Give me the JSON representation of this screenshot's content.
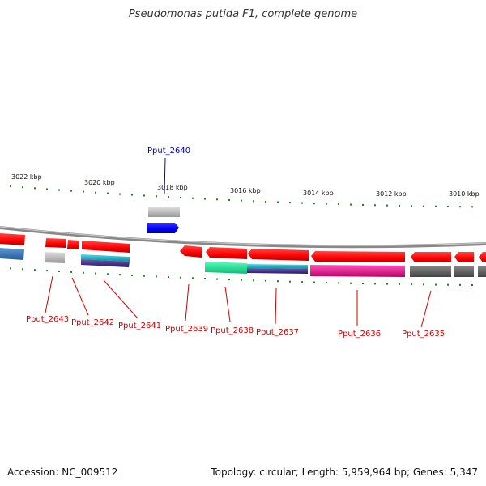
{
  "title": "Pseudomonas putida F1, complete genome",
  "accession": {
    "label": "Accession:",
    "value": "NC_009512"
  },
  "summary": {
    "topology_label": "Topology:",
    "topology": "circular",
    "length_label": "Length:",
    "length": "5,959,964 bp",
    "genes_label": "Genes:",
    "genes": "5,347"
  },
  "ruler": {
    "ticks": [
      "3022 kbp",
      "3020 kbp",
      "3018 kbp",
      "3016 kbp",
      "3014 kbp",
      "3012 kbp",
      "3010 kbp"
    ]
  },
  "genes": [
    {
      "id": "Pput_2643",
      "strand": "forward",
      "color": "#cc0000"
    },
    {
      "id": "Pput_2642",
      "strand": "forward",
      "color": "#cc0000"
    },
    {
      "id": "Pput_2641",
      "strand": "forward",
      "color": "#cc0000"
    },
    {
      "id": "Pput_2640",
      "strand": "reverse",
      "color": "#0000cc"
    },
    {
      "id": "Pput_2639",
      "strand": "forward",
      "color": "#cc0000"
    },
    {
      "id": "Pput_2638",
      "strand": "forward",
      "color": "#cc0000"
    },
    {
      "id": "Pput_2637",
      "strand": "forward",
      "color": "#cc0000"
    },
    {
      "id": "Pput_2636",
      "strand": "forward",
      "color": "#cc0000"
    },
    {
      "id": "Pput_2635",
      "strand": "forward",
      "color": "#cc0000"
    }
  ],
  "colors": {
    "forward_gene": "#ff0000",
    "reverse_gene": "#0000ff",
    "backbone": "#777777",
    "tick": "#118811",
    "cog_blue": "#3a78b8",
    "cog_grey": "#b8b8b8",
    "cog_cyan": "#22bbcc",
    "cog_purple": "#4a3a8a",
    "cog_green": "#22ee99",
    "cog_magenta": "#ee1199",
    "cog_darkgrey": "#666666"
  }
}
